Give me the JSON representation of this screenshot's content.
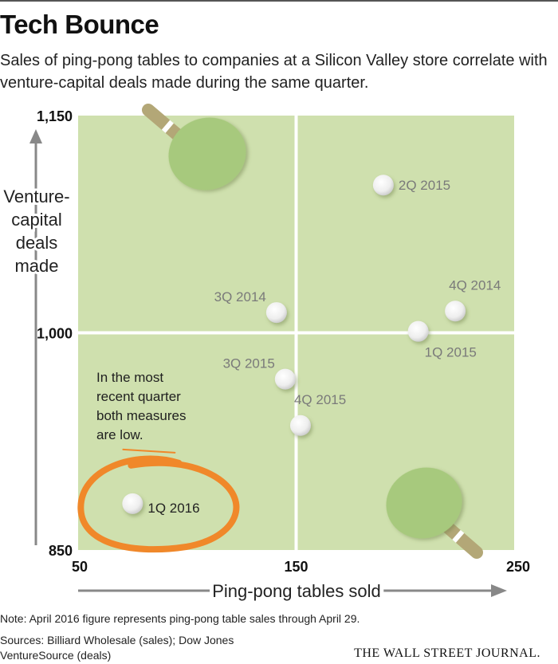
{
  "header": {
    "title": "Tech Bounce",
    "subtitle": "Sales of ping-pong tables to companies at a Silicon Valley store correlate with venture-capital deals made during the same quarter."
  },
  "chart_data": {
    "type": "scatter",
    "xlabel": "Ping-pong tables sold",
    "ylabel_lines": [
      "Venture-",
      "capital",
      "deals",
      "made"
    ],
    "xlim": [
      50,
      250
    ],
    "ylim": [
      850,
      1150
    ],
    "x_ticks": [
      {
        "value": 50,
        "label": "50"
      },
      {
        "value": 150,
        "label": "150"
      },
      {
        "value": 250,
        "label": "250"
      }
    ],
    "y_ticks": [
      {
        "value": 850,
        "label": "850"
      },
      {
        "value": 1000,
        "label": "1,000"
      },
      {
        "value": 1150,
        "label": "1,150"
      }
    ],
    "divider_x": 150,
    "divider_y": 1000,
    "points": [
      {
        "label": "2Q 2015",
        "x": 190,
        "y": 1102,
        "label_side": "right"
      },
      {
        "label": "4Q 2014",
        "x": 223,
        "y": 1015,
        "label_side": "above-right"
      },
      {
        "label": "3Q 2014",
        "x": 141,
        "y": 1014,
        "label_side": "above-left"
      },
      {
        "label": "1Q 2015",
        "x": 206,
        "y": 1001,
        "label_side": "below-right"
      },
      {
        "label": "3Q 2015",
        "x": 145,
        "y": 968,
        "label_side": "above-left"
      },
      {
        "label": "4Q 2015",
        "x": 152,
        "y": 936,
        "label_side": "above-right"
      },
      {
        "label": "1Q 2016",
        "x": 75,
        "y": 882,
        "label_side": "right",
        "highlight": true
      }
    ],
    "annotation": "In the most recent quarter both measures are low.",
    "colors": {
      "quadrant": "#cfe0ae",
      "divider": "#ffffff",
      "ball": "#f2f2f2",
      "label": "#7a7a7a",
      "highlight_label": "#222222",
      "circle": "#f0882a",
      "paddle": "#a7c97d",
      "handle": "#b3a777",
      "axis_arrow": "#888888"
    }
  },
  "footer": {
    "note": "Note: April 2016 figure represents ping-pong table sales through April 29.",
    "sources_line1": "Sources: Billiard Wholesale (sales); Dow Jones",
    "sources_line2": "VentureSource (deals)",
    "brand": "THE WALL STREET JOURNAL."
  }
}
